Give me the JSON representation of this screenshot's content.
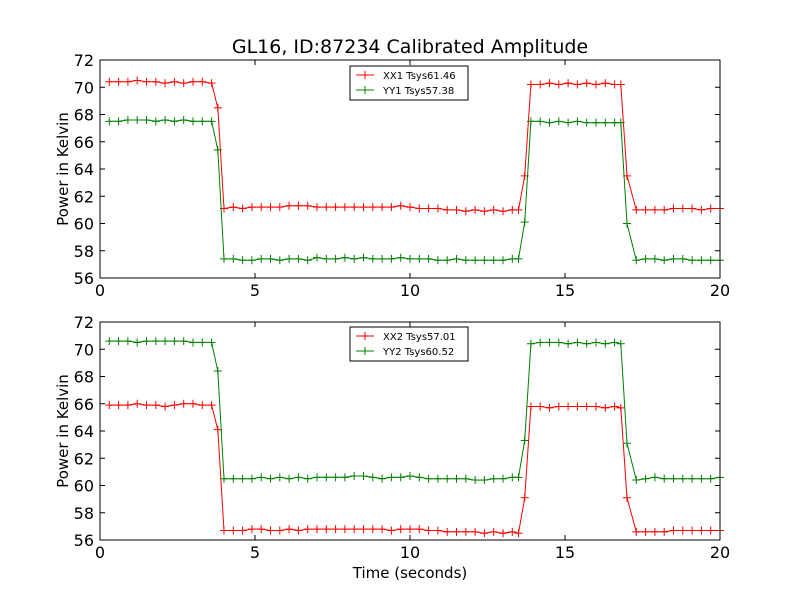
{
  "figure": {
    "title": "GL16, ID:87234 Calibrated Amplitude"
  },
  "chart_data": [
    {
      "type": "line",
      "title": "GL16, ID:87234 Calibrated Amplitude",
      "xlabel": "",
      "ylabel": "Power in Kelvin",
      "xlim": [
        0,
        20
      ],
      "ylim": [
        56,
        72
      ],
      "x_ticks": [
        0,
        5,
        10,
        15,
        20
      ],
      "y_ticks": [
        56,
        58,
        60,
        62,
        64,
        66,
        68,
        70,
        72
      ],
      "grid": false,
      "legend_position": "top-center",
      "x": [
        0.3,
        0.6,
        0.9,
        1.2,
        1.5,
        1.8,
        2.1,
        2.4,
        2.7,
        3.0,
        3.3,
        3.6,
        3.8,
        4.0,
        4.3,
        4.6,
        4.9,
        5.2,
        5.5,
        5.8,
        6.1,
        6.4,
        6.7,
        7.0,
        7.3,
        7.6,
        7.9,
        8.2,
        8.5,
        8.8,
        9.1,
        9.4,
        9.7,
        10.0,
        10.3,
        10.6,
        10.9,
        11.2,
        11.5,
        11.8,
        12.1,
        12.4,
        12.7,
        13.0,
        13.3,
        13.5,
        13.7,
        13.9,
        14.2,
        14.5,
        14.8,
        15.1,
        15.4,
        15.7,
        16.0,
        16.3,
        16.6,
        16.8,
        17.0,
        17.3,
        17.6,
        17.9,
        18.2,
        18.5,
        18.8,
        19.1,
        19.4,
        19.7,
        20.0
      ],
      "series": [
        {
          "name": "XX1 Tsys61.46",
          "color": "#ff0000",
          "values": [
            70.4,
            70.4,
            70.4,
            70.5,
            70.4,
            70.4,
            70.3,
            70.4,
            70.3,
            70.4,
            70.4,
            70.3,
            68.5,
            61.1,
            61.2,
            61.1,
            61.2,
            61.2,
            61.2,
            61.2,
            61.3,
            61.3,
            61.3,
            61.2,
            61.2,
            61.2,
            61.2,
            61.2,
            61.2,
            61.2,
            61.2,
            61.2,
            61.3,
            61.2,
            61.1,
            61.1,
            61.1,
            61.0,
            61.0,
            60.9,
            61.0,
            60.9,
            61.0,
            60.9,
            61.0,
            61.0,
            63.5,
            70.2,
            70.2,
            70.3,
            70.2,
            70.3,
            70.2,
            70.3,
            70.2,
            70.3,
            70.2,
            70.2,
            63.5,
            61.0,
            61.0,
            61.0,
            61.0,
            61.1,
            61.1,
            61.1,
            61.0,
            61.1,
            61.1
          ]
        },
        {
          "name": "YY1 Tsys57.38",
          "color": "#008000",
          "values": [
            67.5,
            67.5,
            67.6,
            67.6,
            67.6,
            67.5,
            67.6,
            67.5,
            67.6,
            67.5,
            67.5,
            67.5,
            65.4,
            57.4,
            57.4,
            57.3,
            57.3,
            57.4,
            57.4,
            57.3,
            57.4,
            57.4,
            57.3,
            57.5,
            57.4,
            57.4,
            57.5,
            57.4,
            57.5,
            57.4,
            57.4,
            57.4,
            57.5,
            57.4,
            57.4,
            57.4,
            57.3,
            57.3,
            57.4,
            57.3,
            57.3,
            57.3,
            57.3,
            57.3,
            57.4,
            57.4,
            60.1,
            67.5,
            67.5,
            67.4,
            67.5,
            67.4,
            67.5,
            67.4,
            67.4,
            67.4,
            67.4,
            67.4,
            60.0,
            57.3,
            57.4,
            57.4,
            57.3,
            57.4,
            57.4,
            57.3,
            57.3,
            57.3,
            57.3
          ]
        }
      ]
    },
    {
      "type": "line",
      "title": "",
      "xlabel": "Time (seconds)",
      "ylabel": "Power in Kelvin",
      "xlim": [
        0,
        20
      ],
      "ylim": [
        56,
        72
      ],
      "x_ticks": [
        0,
        5,
        10,
        15,
        20
      ],
      "y_ticks": [
        56,
        58,
        60,
        62,
        64,
        66,
        68,
        70,
        72
      ],
      "grid": false,
      "legend_position": "top-center",
      "x": [
        0.3,
        0.6,
        0.9,
        1.2,
        1.5,
        1.8,
        2.1,
        2.4,
        2.7,
        3.0,
        3.3,
        3.6,
        3.8,
        4.0,
        4.3,
        4.6,
        4.9,
        5.2,
        5.5,
        5.8,
        6.1,
        6.4,
        6.7,
        7.0,
        7.3,
        7.6,
        7.9,
        8.2,
        8.5,
        8.8,
        9.1,
        9.4,
        9.7,
        10.0,
        10.3,
        10.6,
        10.9,
        11.2,
        11.5,
        11.8,
        12.1,
        12.4,
        12.7,
        13.0,
        13.3,
        13.5,
        13.7,
        13.9,
        14.2,
        14.5,
        14.8,
        15.1,
        15.4,
        15.7,
        16.0,
        16.3,
        16.6,
        16.8,
        17.0,
        17.3,
        17.6,
        17.9,
        18.2,
        18.5,
        18.8,
        19.1,
        19.4,
        19.7,
        20.0
      ],
      "series": [
        {
          "name": "XX2 Tsys57.01",
          "color": "#ff0000",
          "values": [
            65.9,
            65.9,
            65.9,
            66.0,
            65.9,
            65.9,
            65.8,
            65.9,
            66.0,
            66.0,
            65.9,
            65.9,
            64.1,
            56.7,
            56.7,
            56.7,
            56.8,
            56.8,
            56.7,
            56.7,
            56.8,
            56.7,
            56.8,
            56.8,
            56.8,
            56.8,
            56.8,
            56.8,
            56.8,
            56.8,
            56.8,
            56.7,
            56.8,
            56.8,
            56.8,
            56.7,
            56.7,
            56.6,
            56.6,
            56.6,
            56.6,
            56.5,
            56.6,
            56.5,
            56.6,
            56.5,
            59.1,
            65.8,
            65.8,
            65.7,
            65.8,
            65.8,
            65.8,
            65.8,
            65.8,
            65.7,
            65.8,
            65.7,
            59.1,
            56.6,
            56.6,
            56.6,
            56.6,
            56.7,
            56.7,
            56.7,
            56.7,
            56.7,
            56.7
          ]
        },
        {
          "name": "YY2 Tsys60.52",
          "color": "#008000",
          "values": [
            70.6,
            70.6,
            70.6,
            70.5,
            70.6,
            70.6,
            70.6,
            70.6,
            70.6,
            70.5,
            70.5,
            70.5,
            68.4,
            60.5,
            60.5,
            60.5,
            60.5,
            60.6,
            60.5,
            60.6,
            60.5,
            60.6,
            60.5,
            60.6,
            60.6,
            60.6,
            60.6,
            60.7,
            60.7,
            60.6,
            60.5,
            60.6,
            60.6,
            60.7,
            60.6,
            60.5,
            60.5,
            60.5,
            60.5,
            60.5,
            60.4,
            60.4,
            60.5,
            60.5,
            60.6,
            60.6,
            63.3,
            70.4,
            70.5,
            70.5,
            70.5,
            70.4,
            70.5,
            70.4,
            70.5,
            70.4,
            70.5,
            70.4,
            63.1,
            60.4,
            60.5,
            60.6,
            60.5,
            60.5,
            60.5,
            60.5,
            60.5,
            60.5,
            60.6
          ]
        }
      ]
    }
  ]
}
